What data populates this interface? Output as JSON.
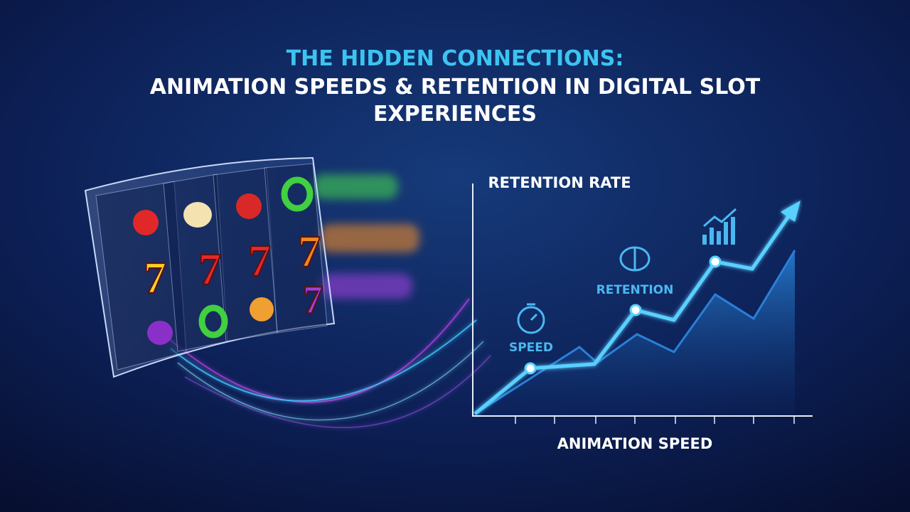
{
  "header": {
    "title_lines": [
      "THE HIDDEN CONNECTIONS:",
      "ANIMATION SPEEDS & RETENTION IN DIGITAL SLOT",
      "EXPERIENCES"
    ]
  },
  "slot": {
    "symbols": [
      "7",
      "7",
      "7",
      "7",
      "7"
    ]
  },
  "graph": {
    "y_label": "RETENTION RATE",
    "x_label": "ANIMATION SPEED",
    "annotations": [
      "SPEED",
      "RETENTION"
    ]
  }
}
